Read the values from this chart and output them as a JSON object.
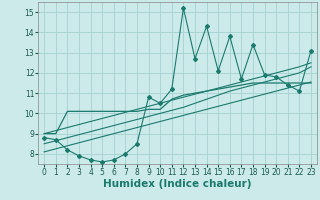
{
  "x_humidex": [
    0,
    1,
    2,
    3,
    4,
    5,
    6,
    7,
    8,
    9,
    10,
    11,
    12,
    13,
    14,
    15,
    16,
    17,
    18,
    19,
    20,
    21,
    22,
    23
  ],
  "y_zigzag": [
    8.8,
    8.7,
    8.2,
    7.9,
    7.7,
    7.6,
    7.7,
    8.0,
    8.5,
    10.8,
    10.5,
    11.2,
    15.2,
    12.7,
    14.3,
    12.1,
    13.8,
    11.7,
    13.4,
    11.9,
    11.8,
    11.4,
    11.1,
    13.1
  ],
  "y_flat": [
    9.0,
    9.0,
    10.1,
    10.1,
    10.1,
    10.1,
    10.1,
    10.1,
    10.1,
    10.2,
    10.2,
    10.7,
    10.9,
    11.0,
    11.1,
    11.2,
    11.3,
    11.4,
    11.5,
    11.5,
    11.5,
    11.5,
    11.5,
    11.5
  ],
  "y_line1": [
    8.1,
    8.25,
    8.4,
    8.55,
    8.7,
    8.85,
    9.0,
    9.15,
    9.3,
    9.45,
    9.6,
    9.75,
    9.9,
    10.05,
    10.2,
    10.35,
    10.5,
    10.65,
    10.8,
    10.95,
    11.1,
    11.25,
    11.4,
    11.55
  ],
  "y_line2": [
    8.5,
    8.65,
    8.8,
    8.95,
    9.1,
    9.25,
    9.4,
    9.55,
    9.7,
    9.85,
    10.0,
    10.15,
    10.3,
    10.5,
    10.7,
    10.9,
    11.1,
    11.25,
    11.4,
    11.55,
    11.7,
    11.85,
    12.0,
    12.3
  ],
  "y_line3": [
    9.0,
    9.15,
    9.3,
    9.45,
    9.6,
    9.75,
    9.9,
    10.05,
    10.2,
    10.35,
    10.5,
    10.65,
    10.8,
    10.95,
    11.1,
    11.25,
    11.4,
    11.55,
    11.7,
    11.85,
    12.0,
    12.15,
    12.3,
    12.5
  ],
  "line_color": "#1a7a6e",
  "bg_color": "#cceaea",
  "grid_color": "#aad4d4",
  "ylim": [
    7.5,
    15.5
  ],
  "xlim": [
    -0.5,
    23.5
  ],
  "yticks": [
    8,
    9,
    10,
    11,
    12,
    13,
    14,
    15
  ],
  "xticks": [
    0,
    1,
    2,
    3,
    4,
    5,
    6,
    7,
    8,
    9,
    10,
    11,
    12,
    13,
    14,
    15,
    16,
    17,
    18,
    19,
    20,
    21,
    22,
    23
  ],
  "xlabel": "Humidex (Indice chaleur)",
  "tick_fontsize": 5.5,
  "label_fontsize": 7.5
}
